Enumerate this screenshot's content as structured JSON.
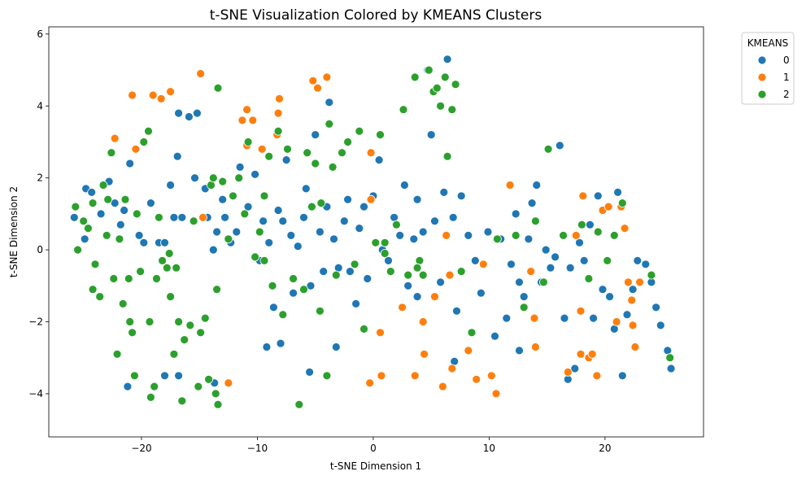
{
  "chart_data": {
    "type": "scatter",
    "title": "t-SNE Visualization Colored by KMEANS Clusters",
    "xlabel": "t-SNE Dimension 1",
    "ylabel": "t-SNE Dimension 2",
    "xlim": [
      -28,
      28.5
    ],
    "ylim": [
      -5.2,
      6.2
    ],
    "xticks": [
      -20,
      -10,
      0,
      10,
      20
    ],
    "yticks": [
      -4,
      -2,
      0,
      2,
      4,
      6
    ],
    "xtick_labels": [
      "−20",
      "−10",
      "0",
      "10",
      "20"
    ],
    "ytick_labels": [
      "−4",
      "−2",
      "0",
      "2",
      "4",
      "6"
    ],
    "grid": false,
    "legend": {
      "title": "KMEANS",
      "position": "outside top-right"
    },
    "series": [
      {
        "name": "0",
        "color": "#1f77b4",
        "points": [
          [
            -25.8,
            0.9
          ],
          [
            -24.8,
            1.7
          ],
          [
            -24.3,
            1.6
          ],
          [
            -24.9,
            0.3
          ],
          [
            -23.5,
            1.0
          ],
          [
            -22.8,
            1.9
          ],
          [
            -22.3,
            1.3
          ],
          [
            -21.8,
            0.7
          ],
          [
            -21.5,
            1.1
          ],
          [
            -21.0,
            2.4
          ],
          [
            -20.2,
            0.4
          ],
          [
            -19.8,
            0.2
          ],
          [
            -19.2,
            1.3
          ],
          [
            -18.5,
            0.2
          ],
          [
            -18.0,
            0.2
          ],
          [
            -17.5,
            1.8
          ],
          [
            -17.2,
            0.9
          ],
          [
            -16.9,
            2.6
          ],
          [
            -16.8,
            3.8
          ],
          [
            -16.5,
            0.9
          ],
          [
            -15.9,
            3.7
          ],
          [
            -15.4,
            2.0
          ],
          [
            -15.2,
            3.8
          ],
          [
            -14.5,
            1.7
          ],
          [
            -14.3,
            0.9
          ],
          [
            -13.8,
            0.0
          ],
          [
            -13.5,
            0.5
          ],
          [
            -13.0,
            1.4
          ],
          [
            -12.8,
            0.9
          ],
          [
            -12.3,
            0.2
          ],
          [
            -11.8,
            0.5
          ],
          [
            -11.5,
            2.3
          ],
          [
            -10.8,
            1.2
          ],
          [
            -10.2,
            2.1
          ],
          [
            -9.8,
            -0.3
          ],
          [
            -9.5,
            0.8
          ],
          [
            -9.0,
            0.2
          ],
          [
            -8.6,
            -1.6
          ],
          [
            -8.2,
            1.1
          ],
          [
            -7.8,
            0.8
          ],
          [
            -7.5,
            2.5
          ],
          [
            -7.1,
            0.4
          ],
          [
            -6.9,
            -1.2
          ],
          [
            -6.5,
            0.1
          ],
          [
            -6.0,
            0.9
          ],
          [
            -5.8,
            1.7
          ],
          [
            -5.4,
            -1.0
          ],
          [
            -5.0,
            3.2
          ],
          [
            -4.6,
            0.5
          ],
          [
            -4.3,
            -0.6
          ],
          [
            -4.0,
            1.2
          ],
          [
            -3.8,
            4.1
          ],
          [
            -3.4,
            0.3
          ],
          [
            -3.0,
            -0.5
          ],
          [
            -2.5,
            0.8
          ],
          [
            -2.2,
            1.4
          ],
          [
            -2.0,
            -0.6
          ],
          [
            -1.5,
            -1.5
          ],
          [
            -1.2,
            0.6
          ],
          [
            -0.8,
            1.2
          ],
          [
            -0.5,
            -0.8
          ],
          [
            0.0,
            1.5
          ],
          [
            0.5,
            2.5
          ],
          [
            0.8,
            0.0
          ],
          [
            1.3,
            -0.3
          ],
          [
            1.8,
            0.9
          ],
          [
            2.3,
            0.4
          ],
          [
            2.7,
            1.8
          ],
          [
            3.0,
            -1.0
          ],
          [
            3.5,
            0.3
          ],
          [
            3.8,
            1.4
          ],
          [
            4.3,
            0.5
          ],
          [
            4.7,
            5.0
          ],
          [
            5.0,
            3.2
          ],
          [
            5.3,
            0.8
          ],
          [
            5.8,
            -0.9
          ],
          [
            6.1,
            1.6
          ],
          [
            6.4,
            5.3
          ],
          [
            6.9,
            0.9
          ],
          [
            7.2,
            -1.7
          ],
          [
            7.6,
            1.5
          ],
          [
            8.2,
            0.4
          ],
          [
            8.8,
            -0.3
          ],
          [
            9.3,
            -1.2
          ],
          [
            9.9,
            0.5
          ],
          [
            10.5,
            -2.4
          ],
          [
            11.0,
            0.3
          ],
          [
            11.5,
            -1.9
          ],
          [
            11.9,
            -0.4
          ],
          [
            12.3,
            1.0
          ],
          [
            12.6,
            -0.9
          ],
          [
            13.0,
            -1.3
          ],
          [
            13.4,
            0.3
          ],
          [
            13.7,
            1.3
          ],
          [
            14.1,
            1.8
          ],
          [
            14.5,
            -0.9
          ],
          [
            14.9,
            0.0
          ],
          [
            15.3,
            -0.5
          ],
          [
            15.7,
            -0.2
          ],
          [
            16.1,
            2.9
          ],
          [
            16.5,
            -1.9
          ],
          [
            17.0,
            -0.5
          ],
          [
            17.4,
            -3.3
          ],
          [
            17.8,
            0.2
          ],
          [
            18.2,
            -0.3
          ],
          [
            18.7,
            0.7
          ],
          [
            19.0,
            -1.9
          ],
          [
            19.4,
            1.5
          ],
          [
            19.8,
            -1.1
          ],
          [
            20.4,
            -1.3
          ],
          [
            20.8,
            -2.2
          ],
          [
            21.1,
            1.6
          ],
          [
            21.5,
            -3.5
          ],
          [
            21.9,
            -1.8
          ],
          [
            22.4,
            -1.1
          ],
          [
            22.8,
            -0.3
          ],
          [
            23.5,
            -0.4
          ],
          [
            24.0,
            -0.9
          ],
          [
            24.4,
            -1.6
          ],
          [
            24.8,
            -2.1
          ],
          [
            25.4,
            -2.8
          ],
          [
            25.7,
            -3.3
          ],
          [
            -21.2,
            -3.8
          ],
          [
            -18.0,
            -3.5
          ],
          [
            -16.8,
            -3.5
          ],
          [
            -13.7,
            -3.7
          ],
          [
            -9.2,
            -2.7
          ],
          [
            -8.0,
            -2.6
          ],
          [
            -5.5,
            -3.4
          ],
          [
            -3.2,
            -2.7
          ],
          [
            3.8,
            -1.3
          ],
          [
            7.0,
            -3.1
          ],
          [
            12.6,
            -2.8
          ],
          [
            16.8,
            -3.6
          ]
        ]
      },
      {
        "name": "1",
        "color": "#ff7f0e",
        "points": [
          [
            -22.3,
            3.1
          ],
          [
            -20.8,
            4.3
          ],
          [
            -20.5,
            2.8
          ],
          [
            -19.0,
            4.3
          ],
          [
            -18.3,
            4.2
          ],
          [
            -17.5,
            4.4
          ],
          [
            -17.8,
            -0.5
          ],
          [
            -14.9,
            4.9
          ],
          [
            -14.7,
            0.9
          ],
          [
            -12.5,
            -3.7
          ],
          [
            -11.3,
            3.6
          ],
          [
            -10.9,
            3.9
          ],
          [
            -10.9,
            2.9
          ],
          [
            -10.4,
            3.6
          ],
          [
            -9.6,
            2.8
          ],
          [
            -8.3,
            3.2
          ],
          [
            -8.1,
            4.2
          ],
          [
            -8.2,
            3.8
          ],
          [
            -5.2,
            4.7
          ],
          [
            -4.8,
            4.5
          ],
          [
            -4.0,
            4.8
          ],
          [
            -0.2,
            2.7
          ],
          [
            -0.2,
            1.4
          ],
          [
            -0.3,
            -3.7
          ],
          [
            0.6,
            -2.3
          ],
          [
            0.7,
            -3.5
          ],
          [
            2.5,
            -1.6
          ],
          [
            3.6,
            -3.5
          ],
          [
            4.3,
            -2.0
          ],
          [
            4.4,
            -2.9
          ],
          [
            5.3,
            -1.3
          ],
          [
            6.0,
            -3.8
          ],
          [
            6.3,
            0.4
          ],
          [
            6.6,
            -0.7
          ],
          [
            6.8,
            -3.3
          ],
          [
            8.2,
            -2.8
          ],
          [
            8.9,
            -3.6
          ],
          [
            9.5,
            -0.4
          ],
          [
            10.2,
            -3.5
          ],
          [
            10.6,
            -4.0
          ],
          [
            11.8,
            1.8
          ],
          [
            13.6,
            -0.6
          ],
          [
            13.9,
            -1.9
          ],
          [
            14.0,
            -2.7
          ],
          [
            16.8,
            -3.4
          ],
          [
            17.5,
            0.4
          ],
          [
            17.9,
            -2.9
          ],
          [
            17.9,
            -1.7
          ],
          [
            18.1,
            1.5
          ],
          [
            18.6,
            -3.0
          ],
          [
            18.9,
            -2.9
          ],
          [
            19.3,
            -3.5
          ],
          [
            19.8,
            1.1
          ],
          [
            20.3,
            1.2
          ],
          [
            21.0,
            -2.0
          ],
          [
            21.4,
            1.2
          ],
          [
            21.7,
            0.6
          ],
          [
            22.0,
            -0.9
          ],
          [
            22.3,
            -1.4
          ],
          [
            22.4,
            -2.1
          ],
          [
            22.6,
            -2.7
          ],
          [
            23.0,
            -0.9
          ]
        ]
      },
      {
        "name": "2",
        "color": "#2ca02c",
        "points": [
          [
            -25.7,
            1.2
          ],
          [
            -25.5,
            0.0
          ],
          [
            -25.0,
            0.8
          ],
          [
            -24.6,
            0.6
          ],
          [
            -24.2,
            1.3
          ],
          [
            -24.0,
            -0.4
          ],
          [
            -24.2,
            -1.1
          ],
          [
            -23.6,
            -1.3
          ],
          [
            -23.3,
            1.8
          ],
          [
            -23.0,
            0.4
          ],
          [
            -22.6,
            2.7
          ],
          [
            -22.4,
            -0.8
          ],
          [
            -22.1,
            -2.9
          ],
          [
            -21.9,
            0.3
          ],
          [
            -21.6,
            -1.5
          ],
          [
            -21.4,
            1.4
          ],
          [
            -21.1,
            -0.8
          ],
          [
            -21.0,
            -2.0
          ],
          [
            -20.8,
            -2.3
          ],
          [
            -20.6,
            -3.5
          ],
          [
            -20.4,
            1.0
          ],
          [
            -20.1,
            -0.6
          ],
          [
            -19.8,
            3.0
          ],
          [
            -19.4,
            3.3
          ],
          [
            -19.3,
            -2.0
          ],
          [
            -19.2,
            -4.1
          ],
          [
            -18.9,
            -3.8
          ],
          [
            -18.7,
            -0.8
          ],
          [
            -18.5,
            0.9
          ],
          [
            -18.2,
            -0.3
          ],
          [
            -17.8,
            -0.5
          ],
          [
            -17.6,
            -0.1
          ],
          [
            -17.5,
            -1.3
          ],
          [
            -17.2,
            -2.9
          ],
          [
            -16.8,
            -2.0
          ],
          [
            -16.5,
            -4.2
          ],
          [
            -16.3,
            -2.5
          ],
          [
            -15.8,
            -2.1
          ],
          [
            -15.5,
            0.8
          ],
          [
            -15.1,
            -3.8
          ],
          [
            -14.9,
            -2.3
          ],
          [
            -14.5,
            -1.9
          ],
          [
            -14.2,
            -3.6
          ],
          [
            -14.0,
            1.8
          ],
          [
            -13.8,
            2.0
          ],
          [
            -13.5,
            -1.1
          ],
          [
            -13.4,
            -4.3
          ],
          [
            -13.4,
            4.5
          ],
          [
            -13.0,
            1.9
          ],
          [
            -12.5,
            0.3
          ],
          [
            -12.1,
            1.5
          ],
          [
            -11.6,
            2.0
          ],
          [
            -11.1,
            1.0
          ],
          [
            -10.8,
            3.0
          ],
          [
            -10.2,
            -0.2
          ],
          [
            -9.8,
            0.5
          ],
          [
            -9.4,
            1.5
          ],
          [
            -9.0,
            2.6
          ],
          [
            -8.7,
            -1.0
          ],
          [
            -8.2,
            3.3
          ],
          [
            -7.8,
            -1.8
          ],
          [
            -7.4,
            2.8
          ],
          [
            -6.9,
            -0.8
          ],
          [
            -6.4,
            -4.3
          ],
          [
            -6.0,
            -1.1
          ],
          [
            -5.7,
            2.7
          ],
          [
            -5.3,
            1.2
          ],
          [
            -5.0,
            2.4
          ],
          [
            -4.6,
            -1.7
          ],
          [
            -4.0,
            -3.5
          ],
          [
            -3.8,
            3.5
          ],
          [
            -3.5,
            2.3
          ],
          [
            -3.2,
            -0.7
          ],
          [
            -2.7,
            2.7
          ],
          [
            -2.2,
            3.0
          ],
          [
            -1.6,
            -0.4
          ],
          [
            -1.2,
            3.3
          ],
          [
            -0.8,
            -2.2
          ],
          [
            0.2,
            0.2
          ],
          [
            0.6,
            3.2
          ],
          [
            1.0,
            -0.1
          ],
          [
            1.5,
            -0.6
          ],
          [
            2.0,
            0.7
          ],
          [
            2.6,
            3.9
          ],
          [
            3.0,
            -0.7
          ],
          [
            3.6,
            4.8
          ],
          [
            4.0,
            -0.3
          ],
          [
            4.3,
            -0.7
          ],
          [
            4.8,
            5.0
          ],
          [
            5.2,
            4.4
          ],
          [
            5.5,
            4.5
          ],
          [
            5.8,
            4.0
          ],
          [
            6.2,
            4.8
          ],
          [
            6.4,
            2.6
          ],
          [
            6.8,
            3.9
          ],
          [
            7.1,
            4.6
          ],
          [
            7.6,
            -0.6
          ],
          [
            8.5,
            -2.3
          ],
          [
            10.7,
            0.3
          ],
          [
            12.3,
            0.4
          ],
          [
            14.0,
            0.8
          ],
          [
            14.7,
            -0.9
          ],
          [
            15.1,
            2.8
          ],
          [
            16.4,
            0.4
          ],
          [
            18.0,
            0.7
          ],
          [
            18.6,
            -0.8
          ],
          [
            19.4,
            0.5
          ],
          [
            20.2,
            -0.3
          ],
          [
            20.8,
            0.4
          ],
          [
            21.5,
            1.3
          ],
          [
            24.0,
            -0.7
          ],
          [
            25.6,
            -3.0
          ],
          [
            -13.6,
            -4.0
          ],
          [
            -17.0,
            -0.5
          ],
          [
            -9.4,
            -0.3
          ],
          [
            -4.5,
            1.3
          ],
          [
            1.0,
            0.2
          ],
          [
            3.8,
            -0.5
          ],
          [
            13.0,
            -1.6
          ],
          [
            -22.9,
            1.4
          ]
        ]
      }
    ]
  }
}
